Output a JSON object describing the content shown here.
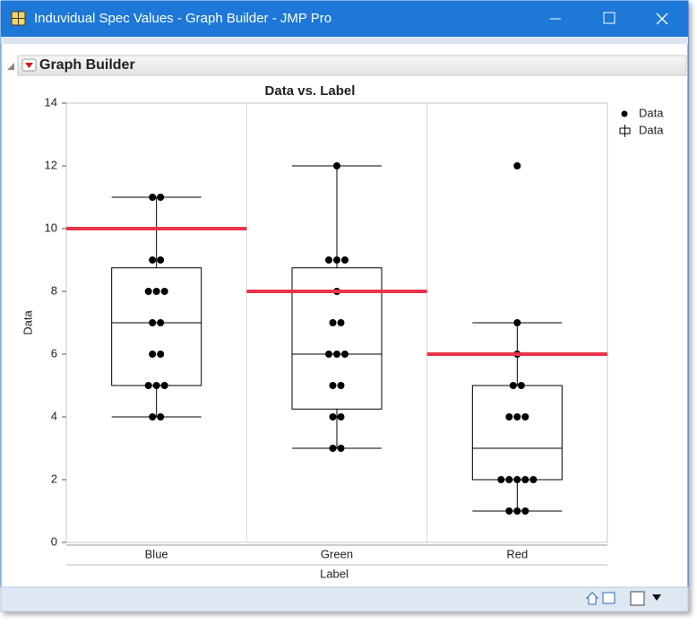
{
  "window": {
    "title": "Induvidual Spec Values - Graph Builder - JMP Pro"
  },
  "panel": {
    "title": "Graph Builder"
  },
  "chart_data": {
    "type": "box",
    "title": "Data vs. Label",
    "x_label": "Label",
    "y_label": "Data",
    "categories": [
      "Blue",
      "Green",
      "Red"
    ],
    "points": [
      [
        11,
        11,
        9,
        9,
        8,
        8,
        8,
        7,
        7,
        6,
        6,
        5,
        5,
        5,
        4,
        4
      ],
      [
        12,
        9,
        9,
        9,
        8,
        7,
        7,
        6,
        6,
        6,
        5,
        5,
        4,
        4,
        3,
        3
      ],
      [
        12,
        7,
        6,
        5,
        5,
        4,
        4,
        4,
        2,
        2,
        2,
        2,
        2,
        1,
        1,
        1
      ]
    ],
    "boxes": [
      {
        "min": 4,
        "q1": 5,
        "median": 7,
        "q3": 8.75,
        "max": 11
      },
      {
        "min": 3,
        "q1": 4.25,
        "median": 6,
        "q3": 8.75,
        "max": 12
      },
      {
        "min": 1,
        "q1": 2,
        "median": 3,
        "q3": 5,
        "max": 7
      }
    ],
    "spec_lines": [
      10,
      8,
      6
    ],
    "spec_color": "#e8344a",
    "point_color": "#000000",
    "legend": [
      "Data",
      "Data"
    ],
    "ylim": [
      0,
      14
    ],
    "yticks": [
      0,
      2,
      4,
      6,
      8,
      10,
      12,
      14
    ]
  }
}
